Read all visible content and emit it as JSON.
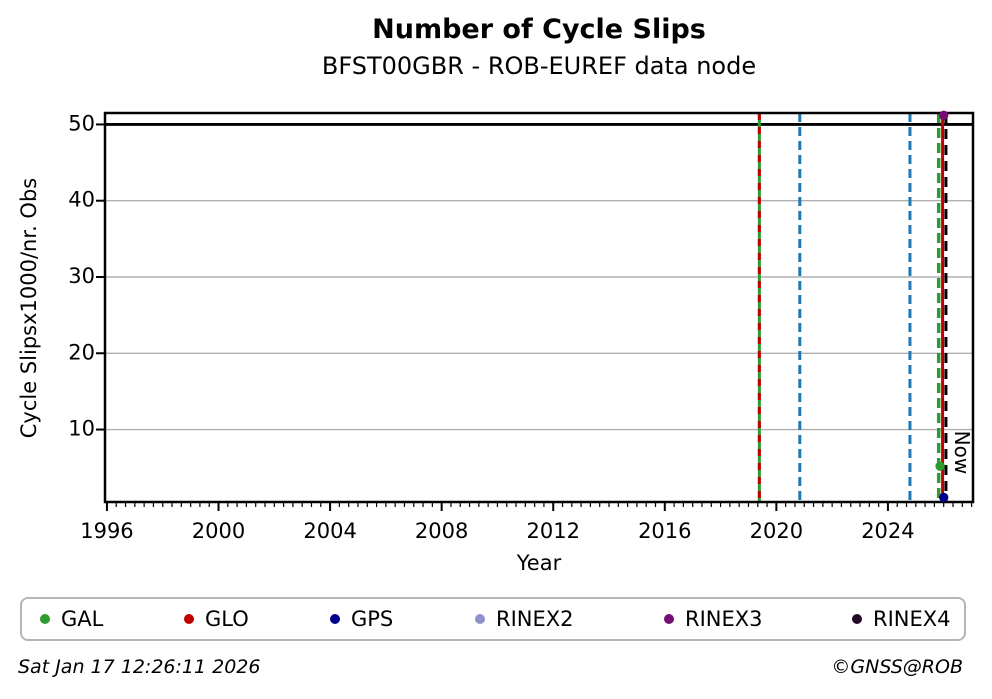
{
  "header": {
    "title": "Number of Cycle Slips",
    "subtitle": "BFST00GBR - ROB-EUREF data node"
  },
  "footer": {
    "timestamp": "Sat Jan 17 12:26:11 2026",
    "copyright": "©GNSS@ROB"
  },
  "chart_data": {
    "type": "line",
    "title": "Number of Cycle Slips",
    "subtitle": "BFST00GBR - ROB-EUREF data node",
    "xlabel": "Year",
    "ylabel": "Cycle Slipsx1000/nr. Obs",
    "xlim": [
      1995.93,
      2027.05
    ],
    "ylim": [
      0.5,
      51.5
    ],
    "x_ticks": [
      1996,
      2000,
      2004,
      2008,
      2012,
      2016,
      2020,
      2024
    ],
    "x_minor_tick_interval": 0.3333333,
    "y_ticks": [
      10,
      20,
      30,
      40,
      50
    ],
    "grid": true,
    "grid_color": "#b0b0b0",
    "axis_color": "#000000",
    "cap_line": {
      "y": 50,
      "color": "#000000",
      "width": 2.8
    },
    "event_lines": [
      {
        "x": 2019.39,
        "color": "#2d9b2d",
        "style": "solid",
        "dash": "",
        "width": 3
      },
      {
        "x": 2019.39,
        "color": "#c00000",
        "style": "dashed",
        "dash": "7,7",
        "width": 3
      },
      {
        "x": 2020.84,
        "color": "#1f77b4",
        "style": "dashed",
        "dash": "9,5",
        "width": 3
      },
      {
        "x": 2024.79,
        "color": "#1f77b4",
        "style": "dashed",
        "dash": "9,5",
        "width": 3
      },
      {
        "x": 2025.82,
        "color": "#2d9b2d",
        "style": "dashed",
        "dash": "10,5",
        "width": 3.5
      },
      {
        "x": 2025.96,
        "color": "#c00000",
        "style": "solid",
        "dash": "",
        "width": 3
      },
      {
        "x": 2026.08,
        "color": "#000000",
        "style": "dashed",
        "dash": "10,6",
        "width": 3
      }
    ],
    "points": [
      {
        "series": "RINEX3",
        "x": 2026.0,
        "y": 51.2,
        "color": "#750f75"
      },
      {
        "series": "GAL",
        "x": 2025.87,
        "y": 5.2,
        "color": "#2d9b2d"
      },
      {
        "series": "GPS",
        "x": 2026.0,
        "y": 1.1,
        "color": "#00008b"
      }
    ],
    "now_marker": {
      "label": "Now",
      "x": 2026.6,
      "label_y": 7.0
    },
    "legend": {
      "position": "bottom",
      "entries": [
        {
          "label": "GAL",
          "color": "#2d9b2d"
        },
        {
          "label": "GLO",
          "color": "#c00000"
        },
        {
          "label": "GPS",
          "color": "#00008b"
        },
        {
          "label": "RINEX2",
          "color": "#9191cb"
        },
        {
          "label": "RINEX3",
          "color": "#750f75"
        },
        {
          "label": "RINEX4",
          "color": "#250a28"
        }
      ]
    }
  }
}
